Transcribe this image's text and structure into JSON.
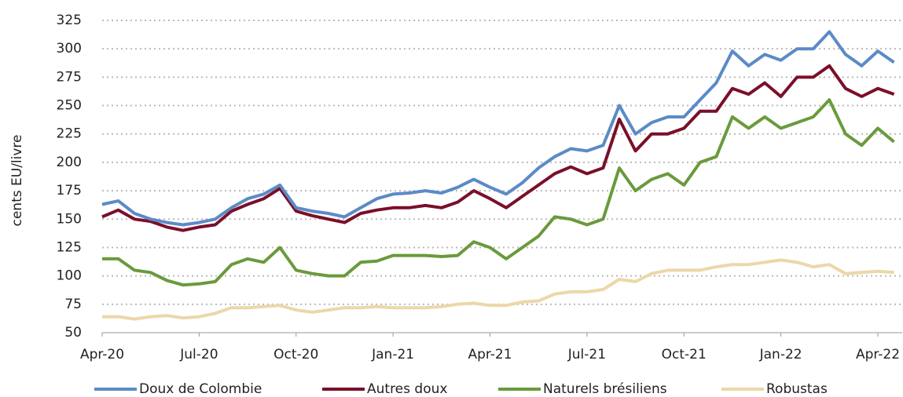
{
  "chart_data": {
    "type": "line",
    "y_label": "cents EU/livre",
    "categories": [
      "Apr-20",
      null,
      null,
      null,
      null,
      null,
      "Jul-20",
      null,
      null,
      null,
      null,
      null,
      "Oct-20",
      null,
      null,
      null,
      null,
      null,
      "Jan-21",
      null,
      null,
      null,
      null,
      null,
      "Apr-21",
      null,
      null,
      null,
      null,
      null,
      "Jul-21",
      null,
      null,
      null,
      null,
      null,
      "Oct-21",
      null,
      null,
      null,
      null,
      null,
      "Jan-22",
      null,
      null,
      null,
      null,
      null,
      "Apr-22",
      null
    ],
    "series": [
      {
        "name": "Doux de Colombie",
        "color": "#5b8bc6",
        "values": [
          163,
          166,
          155,
          150,
          147,
          145,
          147,
          150,
          160,
          168,
          172,
          180,
          160,
          157,
          155,
          152,
          160,
          168,
          172,
          173,
          175,
          173,
          178,
          185,
          178,
          172,
          182,
          195,
          205,
          212,
          210,
          215,
          250,
          225,
          235,
          240,
          240,
          255,
          270,
          298,
          285,
          295,
          290,
          300,
          300,
          315,
          295,
          285,
          298,
          288
        ]
      },
      {
        "name": "Autres doux",
        "color": "#7a0f2a",
        "values": [
          152,
          158,
          150,
          148,
          143,
          140,
          143,
          145,
          157,
          163,
          168,
          177,
          157,
          153,
          150,
          147,
          155,
          158,
          160,
          160,
          162,
          160,
          165,
          175,
          168,
          160,
          170,
          180,
          190,
          196,
          190,
          195,
          238,
          210,
          225,
          225,
          230,
          245,
          245,
          265,
          260,
          270,
          258,
          275,
          275,
          285,
          265,
          258,
          265,
          260
        ]
      },
      {
        "name": "Naturels brésiliens",
        "color": "#6a9a3c",
        "values": [
          115,
          115,
          105,
          103,
          96,
          92,
          93,
          95,
          110,
          115,
          112,
          125,
          105,
          102,
          100,
          100,
          112,
          113,
          118,
          118,
          118,
          117,
          118,
          130,
          125,
          115,
          125,
          135,
          152,
          150,
          145,
          150,
          195,
          175,
          185,
          190,
          180,
          200,
          205,
          240,
          230,
          240,
          230,
          235,
          240,
          255,
          225,
          215,
          230,
          218
        ]
      },
      {
        "name": "Robustas",
        "color": "#ecd7a8",
        "values": [
          64,
          64,
          62,
          64,
          65,
          63,
          64,
          67,
          72,
          72,
          73,
          74,
          70,
          68,
          70,
          72,
          72,
          73,
          72,
          72,
          72,
          73,
          75,
          76,
          74,
          74,
          77,
          78,
          84,
          86,
          86,
          88,
          97,
          95,
          102,
          105,
          105,
          105,
          108,
          110,
          110,
          112,
          114,
          112,
          108,
          110,
          102,
          103,
          104,
          103
        ]
      }
    ],
    "ylim": [
      50,
      325
    ],
    "yticks": [
      50,
      75,
      100,
      125,
      150,
      175,
      200,
      225,
      250,
      275,
      300,
      325
    ],
    "grid": true,
    "legend": "bottom"
  }
}
